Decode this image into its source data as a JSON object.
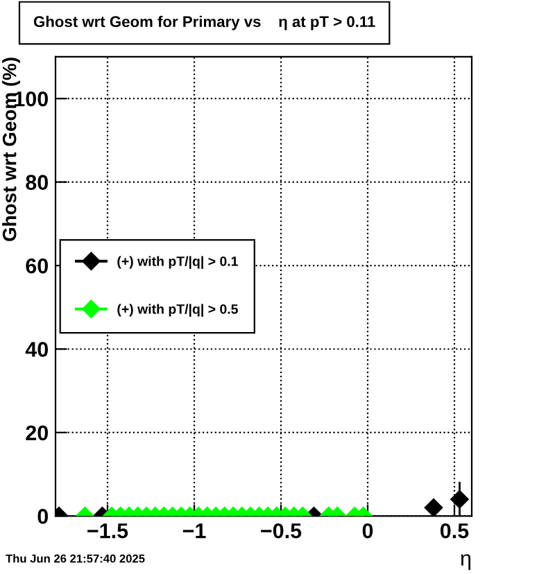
{
  "chart_data": {
    "type": "scatter",
    "title": "Ghost wrt Geom for Primary vs    η at pT > 0.11",
    "xlabel": "η",
    "ylabel": "Ghost wrt Geom (%)",
    "annotations": [
      "Thu Jun 26 21:57:40 2025"
    ],
    "series": [
      {
        "name": "(+) with pT/|q| > 0.1",
        "color": "#000000",
        "x": [
          -1.78,
          -1.53,
          -0.31,
          0.38,
          0.53
        ],
        "values": [
          0,
          0,
          0,
          2,
          4
        ],
        "errors": [
          null,
          null,
          null,
          null,
          4.2
        ]
      },
      {
        "name": "(+) with pT/|q| > 0.5",
        "color": "#00ff00",
        "x": [
          -1.63,
          -1.475,
          -1.425,
          -1.375,
          -1.325,
          -1.275,
          -1.225,
          -1.175,
          -1.125,
          -1.075,
          -1.025,
          -0.975,
          -0.925,
          -0.875,
          -0.825,
          -0.775,
          -0.725,
          -0.675,
          -0.625,
          -0.575,
          -0.525,
          -0.475,
          -0.425,
          -0.375,
          -0.225,
          -0.175,
          -0.075,
          -0.025
        ],
        "values": [
          0,
          0,
          0,
          0,
          0,
          0,
          0,
          0,
          0,
          0,
          0,
          0,
          0,
          0,
          0,
          0,
          0,
          0,
          0,
          0,
          0,
          0,
          0,
          0,
          0,
          0,
          0,
          0
        ]
      }
    ],
    "xlim": [
      -1.8,
      0.6
    ],
    "ylim": [
      0,
      110
    ],
    "xticks": [
      {
        "value": -1.5,
        "label": "−1.5"
      },
      {
        "value": -1,
        "label": "−1"
      },
      {
        "value": -0.5,
        "label": "−0.5"
      },
      0,
      0.5
    ],
    "yticks": [
      0,
      20,
      40,
      60,
      80,
      100
    ],
    "grid": true,
    "legend": "left",
    "marker": "diamond"
  }
}
